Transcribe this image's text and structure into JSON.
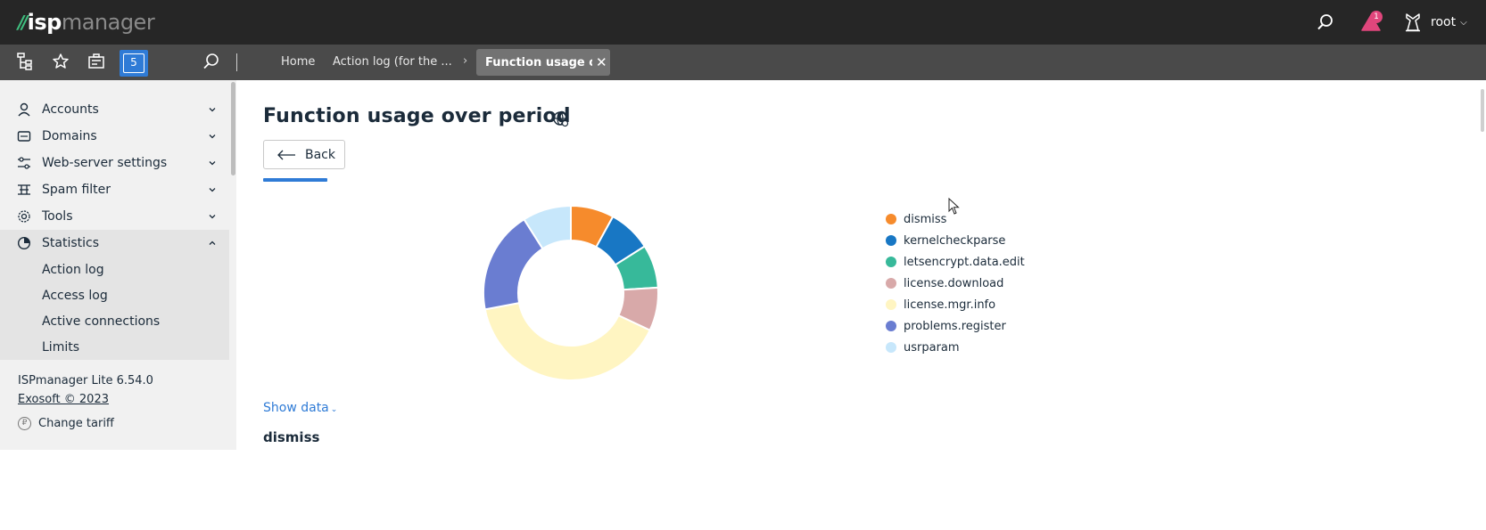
{
  "app": {
    "logo_mark": "//",
    "logo_isp": "isp",
    "logo_mgr": "manager"
  },
  "header": {
    "notifications_count": "1",
    "user_name": "root"
  },
  "toolbar": {
    "counter": "5"
  },
  "breadcrumbs": {
    "home": "Home",
    "action_log": "Action log (for the ...",
    "active": "Function usage ove..."
  },
  "sidebar": {
    "items": [
      {
        "label": "Accounts",
        "icon": "accounts-icon",
        "state": "collapsed"
      },
      {
        "label": "Domains",
        "icon": "domains-icon",
        "state": "collapsed"
      },
      {
        "label": "Web-server settings",
        "icon": "sliders-icon",
        "state": "collapsed"
      },
      {
        "label": "Spam filter",
        "icon": "filter-icon",
        "state": "collapsed"
      },
      {
        "label": "Tools",
        "icon": "gear-icon",
        "state": "collapsed"
      },
      {
        "label": "Statistics",
        "icon": "pie-chart-icon",
        "state": "expanded"
      }
    ],
    "statistics_sub": [
      "Action log",
      "Access log",
      "Active connections",
      "Limits"
    ],
    "version": "ISPmanager Lite 6.54.0",
    "copyright": "Exosoft © 2023",
    "change_tariff": "Change tariff"
  },
  "main": {
    "title": "Function usage over period",
    "back_label": "Back",
    "show_data": "Show data",
    "section_label": "dismiss"
  },
  "chart_data": {
    "type": "pie",
    "donut": true,
    "categories": [
      "dismiss",
      "kernelcheckparse",
      "letsencrypt.data.edit",
      "license.download",
      "license.mgr.info",
      "problems.register",
      "usrparam"
    ],
    "values": [
      8,
      8,
      8,
      8,
      40,
      19,
      9
    ],
    "colors": [
      "#f68b2c",
      "#1877c4",
      "#37b99a",
      "#d8a9a9",
      "#fff5c2",
      "#6a7dd1",
      "#c7e7fb"
    ],
    "legend_position": "right"
  }
}
